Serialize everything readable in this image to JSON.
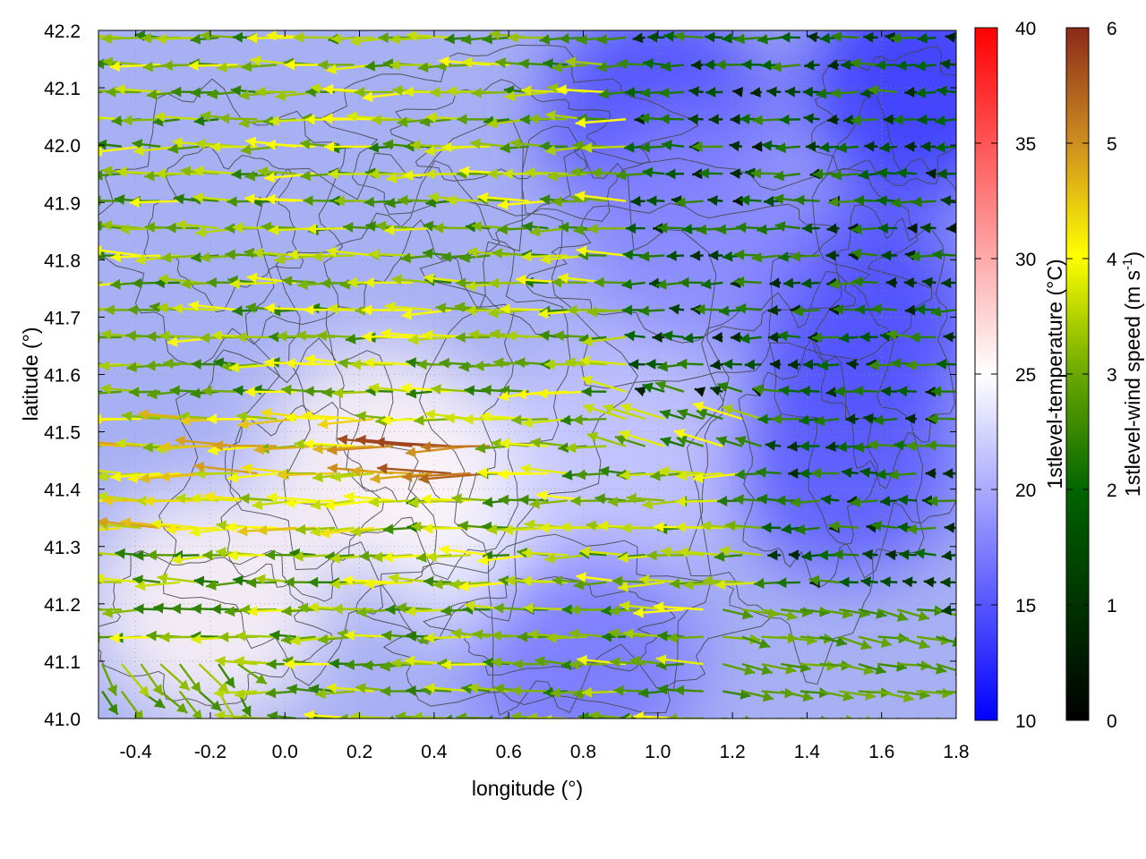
{
  "chart_data": {
    "type": "heatmap",
    "overlays": [
      "contour",
      "vector-field"
    ],
    "xlabel": "longitude (°)",
    "ylabel": "latitude (°)",
    "xlim": [
      -0.5,
      1.8
    ],
    "ylim": [
      41.0,
      42.2
    ],
    "x_ticks": [
      "-0.4",
      "-0.2",
      "0.0",
      "0.2",
      "0.4",
      "0.6",
      "0.8",
      "1.0",
      "1.2",
      "1.4",
      "1.6",
      "1.8"
    ],
    "y_ticks": [
      "41.0",
      "41.1",
      "41.2",
      "41.3",
      "41.4",
      "41.5",
      "41.6",
      "41.7",
      "41.8",
      "41.9",
      "42.0",
      "42.1",
      "42.2"
    ],
    "temperature_colorbar": {
      "label": "1stlevel-temperature (°C)",
      "range": [
        10,
        40
      ],
      "ticks": [
        "10",
        "15",
        "20",
        "25",
        "30",
        "35",
        "40"
      ],
      "colors": [
        "#0000ff",
        "#ffffff",
        "#ff0000"
      ]
    },
    "wind_colorbar": {
      "label_main": "1stlevel-wind speed (m s",
      "label_sup": "-1",
      "label_end": ")",
      "range": [
        0,
        6
      ],
      "ticks": [
        "0",
        "1",
        "2",
        "3",
        "4",
        "5",
        "6"
      ],
      "colors": [
        "#000000",
        "#006400",
        "#6aa800",
        "#ffff00",
        "#d09020",
        "#8b2a1a"
      ]
    },
    "temperature_regions": [
      {
        "lon": 0.55,
        "lat": 41.35,
        "temp": 24.5
      },
      {
        "lon": 0.25,
        "lat": 41.45,
        "temp": 25.5
      },
      {
        "lon": -0.2,
        "lat": 41.2,
        "temp": 25.5
      },
      {
        "lon": 0.9,
        "lat": 41.45,
        "temp": 21.5
      },
      {
        "lon": 1.0,
        "lat": 42.05,
        "temp": 14
      },
      {
        "lon": 1.55,
        "lat": 41.7,
        "temp": 14
      },
      {
        "lon": 1.7,
        "lat": 42.1,
        "temp": 13
      },
      {
        "lon": 0.8,
        "lat": 41.1,
        "temp": 17
      },
      {
        "lon": 1.1,
        "lat": 41.85,
        "temp": 18
      },
      {
        "lon": 1.5,
        "lat": 41.45,
        "temp": 15
      }
    ],
    "wind_field": "mostly easterly flow 1.5–3.5 m s-1 over most of the domain; westerly flow ~2–2.5 m s-1 in the south-east corner; strongest winds 4–6 m s-1 near 0.3–0.5°E, 41.4–41.5°N"
  }
}
